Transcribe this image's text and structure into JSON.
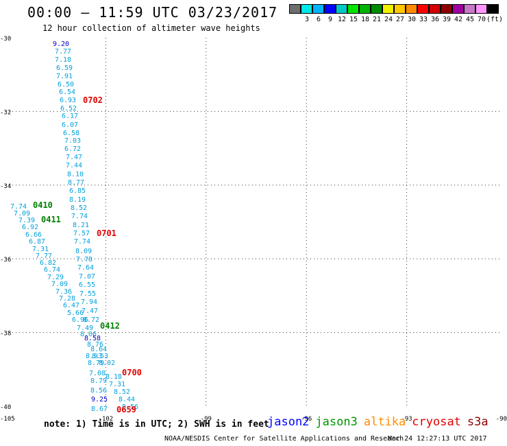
{
  "title": "00:00 – 11:59 UTC 03/23/2017",
  "subtitle": "12 hour collection of altimeter wave heights",
  "color_scale": {
    "colors": [
      "#6e6e6e",
      "#00e8e8",
      "#00b4ff",
      "#0000ff",
      "#00c8c8",
      "#00e600",
      "#00b400",
      "#008c00",
      "#f0f000",
      "#ffc800",
      "#ff8c00",
      "#ff0000",
      "#d20000",
      "#8c0000",
      "#a000a0",
      "#c878c8",
      "#ff96ff",
      "#000000"
    ],
    "labels": [
      "",
      "3",
      "6",
      "9",
      "12",
      "15",
      "18",
      "21",
      "24",
      "27",
      "30",
      "33",
      "36",
      "39",
      "42",
      "45",
      "70",
      "(ft)"
    ]
  },
  "axes": {
    "lat_labels": [
      "-30",
      "-32",
      "-34",
      "-36",
      "-38",
      "-40"
    ],
    "lon_labels": [
      "-105",
      "-102",
      "-99",
      "-96",
      "-93",
      "-90"
    ]
  },
  "passes": [
    {
      "label": "0702",
      "color": "#e00000"
    },
    {
      "label": "0410",
      "color": "#008000"
    },
    {
      "label": "0411",
      "color": "#008000"
    },
    {
      "label": "0701",
      "color": "#e00000"
    },
    {
      "label": "0412",
      "color": "#008000"
    },
    {
      "label": "0700",
      "color": "#e00000"
    },
    {
      "label": "0659",
      "color": "#e00000"
    }
  ],
  "wave_labels": [
    {
      "v": "9.20",
      "c": "#0000c8"
    },
    {
      "v": "7.77",
      "c": "#00a0dc"
    },
    {
      "v": "7.18",
      "c": "#00a0dc"
    },
    {
      "v": "6.59",
      "c": "#00a0dc"
    },
    {
      "v": "7.91",
      "c": "#00a0dc"
    },
    {
      "v": "6.50",
      "c": "#00a0dc"
    },
    {
      "v": "6.54",
      "c": "#00a0dc"
    },
    {
      "v": "6.93",
      "c": "#00a0dc"
    },
    {
      "v": "6.52",
      "c": "#00a0dc"
    },
    {
      "v": "6.17",
      "c": "#00a0dc"
    },
    {
      "v": "6.07",
      "c": "#00a0dc"
    },
    {
      "v": "6.58",
      "c": "#00a0dc"
    },
    {
      "v": "7.03",
      "c": "#00a0dc"
    },
    {
      "v": "6.72",
      "c": "#00a0dc"
    },
    {
      "v": "7.47",
      "c": "#00a0dc"
    },
    {
      "v": "7.44",
      "c": "#00a0dc"
    },
    {
      "v": "8.10",
      "c": "#00a0dc"
    },
    {
      "v": "8.77",
      "c": "#00a0dc"
    },
    {
      "v": "6.85",
      "c": "#00a0dc"
    },
    {
      "v": "8.19",
      "c": "#00a0dc"
    },
    {
      "v": "8.52",
      "c": "#00a0dc"
    },
    {
      "v": "7.74",
      "c": "#00a0dc"
    },
    {
      "v": "8.21",
      "c": "#00a0dc"
    },
    {
      "v": "7.57",
      "c": "#00a0dc"
    },
    {
      "v": "7.74",
      "c": "#00a0dc"
    },
    {
      "v": "8.09",
      "c": "#00a0dc"
    },
    {
      "v": "7.78",
      "c": "#00a0dc"
    },
    {
      "v": "7.64",
      "c": "#00a0dc"
    },
    {
      "v": "7.07",
      "c": "#00a0dc"
    },
    {
      "v": "6.55",
      "c": "#00a0dc"
    },
    {
      "v": "7.55",
      "c": "#00a0dc"
    },
    {
      "v": "7.94",
      "c": "#00a0dc"
    },
    {
      "v": "7.47",
      "c": "#00a0dc"
    },
    {
      "v": "8.72",
      "c": "#00a0dc"
    },
    {
      "v": "7.74",
      "c": "#00a0dc"
    },
    {
      "v": "7.09",
      "c": "#00a0dc"
    },
    {
      "v": "7.39",
      "c": "#00a0dc"
    },
    {
      "v": "6.92",
      "c": "#00a0dc"
    },
    {
      "v": "6.66",
      "c": "#00a0dc"
    },
    {
      "v": "6.87",
      "c": "#00a0dc"
    },
    {
      "v": "7.31",
      "c": "#00a0dc"
    },
    {
      "v": "7.77",
      "c": "#00a0dc"
    },
    {
      "v": "6.82",
      "c": "#00a0dc"
    },
    {
      "v": "6.74",
      "c": "#00a0dc"
    },
    {
      "v": "7.29",
      "c": "#00a0dc"
    },
    {
      "v": "7.09",
      "c": "#00a0dc"
    },
    {
      "v": "7.36",
      "c": "#00a0dc"
    },
    {
      "v": "7.28",
      "c": "#00a0dc"
    },
    {
      "v": "6.47",
      "c": "#00a0dc"
    },
    {
      "v": "5.66",
      "c": "#00a0dc"
    },
    {
      "v": "6.96",
      "c": "#00a0dc"
    },
    {
      "v": "7.49",
      "c": "#00a0dc"
    },
    {
      "v": "8.06",
      "c": "#00a0dc"
    },
    {
      "v": "8.58",
      "c": "#0000c8"
    },
    {
      "v": "8.76",
      "c": "#00a0dc"
    },
    {
      "v": "8.64",
      "c": "#00a0dc"
    },
    {
      "v": "8.93",
      "c": "#00a0dc"
    },
    {
      "v": "8.53",
      "c": "#00a0dc"
    },
    {
      "v": "8.79",
      "c": "#00a0dc"
    },
    {
      "v": "8.02",
      "c": "#00a0dc"
    },
    {
      "v": "7.08",
      "c": "#00a0dc"
    },
    {
      "v": "8.18",
      "c": "#00a0dc"
    },
    {
      "v": "8.79",
      "c": "#00a0dc"
    },
    {
      "v": "7.31",
      "c": "#00a0dc"
    },
    {
      "v": "8.56",
      "c": "#00a0dc"
    },
    {
      "v": "8.52",
      "c": "#00a0dc"
    },
    {
      "v": "9.25",
      "c": "#0000c8"
    },
    {
      "v": "8.44",
      "c": "#00a0dc"
    },
    {
      "v": "8.67",
      "c": "#00a0dc"
    },
    {
      "v": "8.56",
      "c": "#00a0dc"
    }
  ],
  "note": "note: 1) Time is in UTC; 2) SWH is in feet",
  "legend": [
    {
      "name": "jason2",
      "color": "#0000ff"
    },
    {
      "name": "jason3",
      "color": "#009600"
    },
    {
      "name": "altika",
      "color": "#ff8c00"
    },
    {
      "name": "cryosat",
      "color": "#e00000"
    },
    {
      "name": "s3a",
      "color": "#8c0000"
    }
  ],
  "credit": "NOAA/NESDIS Center for Satellite Applications and Research",
  "timestamp": "Mar 24 12:27:13 UTC 2017"
}
